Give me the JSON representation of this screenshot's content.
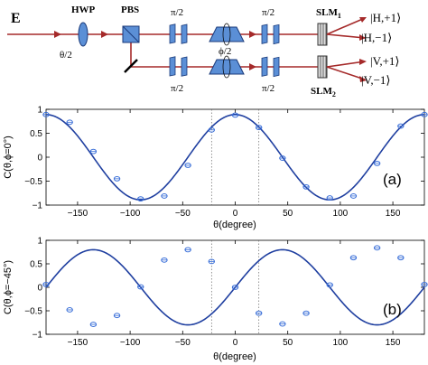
{
  "setup": {
    "input_label": "E",
    "hwp_label": "HWP",
    "hwp_angle_label": "θ/2",
    "pbs_label": "PBS",
    "pi2_label": "π/2",
    "phi2_label": "ϕ/2",
    "slm1_label": "SLM",
    "slm1_sub": "1",
    "slm2_label": "SLM",
    "slm2_sub": "2",
    "outputs": [
      "|H,+1⟩",
      "|H,−1⟩",
      "|V,+1⟩",
      "|V,−1⟩"
    ],
    "colors": {
      "beam": "#a52a2a",
      "optic_fill": "#5b8fd6",
      "optic_stroke": "#1a3a7a"
    }
  },
  "chart_data": [
    {
      "type": "line",
      "panel_tag": "(a)",
      "xlabel": "θ(degree)",
      "ylabel": "C(θ,ϕ=0°)",
      "xlim": [
        -180,
        180
      ],
      "ylim": [
        -1,
        1
      ],
      "xticks": [
        -150,
        -100,
        -50,
        0,
        50,
        100,
        150
      ],
      "yticks": [
        -1,
        -0.5,
        0,
        0.5,
        1
      ],
      "ytick_labels": [
        "−1",
        "−0.5",
        "0",
        "0.5",
        "1"
      ],
      "xtick_labels": [
        "−150",
        "−100",
        "−50",
        "0",
        "50",
        "100",
        "150"
      ],
      "reference_lines_x": [
        -22.5,
        22.5
      ],
      "fit": {
        "amplitude": 0.89,
        "frequency": 2,
        "phase_deg": 0,
        "form": "cos"
      },
      "series": [
        {
          "points": {
            "x": [
              -180,
              -157.5,
              -135,
              -112.5,
              -90,
              -67.5,
              -45,
              -22.5,
              0,
              22.5,
              45,
              67.5,
              90,
              112.5,
              135,
              157.5,
              180
            ],
            "y": [
              0.89,
              0.73,
              0.12,
              -0.45,
              -0.87,
              -0.81,
              -0.17,
              0.57,
              0.88,
              0.62,
              -0.02,
              -0.62,
              -0.85,
              -0.81,
              -0.13,
              0.65,
              0.89
            ]
          }
        }
      ],
      "colors": {
        "line": "#1f3fa0",
        "marker": "#3a6fd8"
      }
    },
    {
      "type": "line",
      "panel_tag": "(b)",
      "xlabel": "θ(degree)",
      "ylabel": "C(θ,ϕ=−45°)",
      "xlim": [
        -180,
        180
      ],
      "ylim": [
        -1,
        1
      ],
      "xticks": [
        -150,
        -100,
        -50,
        0,
        50,
        100,
        150
      ],
      "yticks": [
        -1,
        -0.5,
        0,
        0.5,
        1
      ],
      "ytick_labels": [
        "−1",
        "−0.5",
        "0",
        "0.5",
        "1"
      ],
      "xtick_labels": [
        "−150",
        "−100",
        "−50",
        "0",
        "50",
        "100",
        "150"
      ],
      "reference_lines_x": [
        -22.5,
        22.5
      ],
      "fit": {
        "amplitude": 0.8,
        "frequency": 2,
        "phase_deg": -90,
        "form": "cos"
      },
      "series": [
        {
          "points": {
            "x": [
              -180,
              -157.5,
              -135,
              -112.5,
              -90,
              -67.5,
              -45,
              -22.5,
              0,
              22.5,
              45,
              67.5,
              90,
              112.5,
              135,
              157.5,
              180
            ],
            "y": [
              0.06,
              -0.48,
              -0.79,
              -0.6,
              0.01,
              0.58,
              0.8,
              0.55,
              0.0,
              -0.55,
              -0.78,
              -0.55,
              0.05,
              0.63,
              0.84,
              0.63,
              0.06
            ]
          }
        }
      ],
      "colors": {
        "line": "#1f3fa0",
        "marker": "#3a6fd8"
      }
    }
  ]
}
